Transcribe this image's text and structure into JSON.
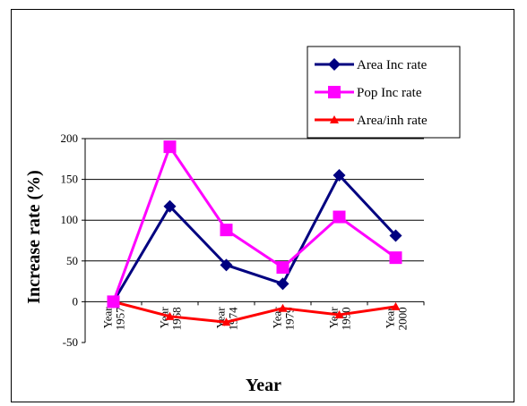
{
  "chart_data": {
    "type": "line",
    "title": "",
    "xlabel": "Year",
    "ylabel": "Increase rate (%)",
    "categories": [
      "Year 1957",
      "Year 1968",
      "Year 1974",
      "Year 1979",
      "Year 1990",
      "Year 2000"
    ],
    "ylim": [
      -50,
      200
    ],
    "yticks": [
      -50,
      0,
      50,
      100,
      150,
      200
    ],
    "grid": true,
    "legend_position": "top-right",
    "series": [
      {
        "name": "Area Inc rate",
        "color": "#000080",
        "marker": "diamond",
        "values": [
          0,
          117,
          45,
          22,
          155,
          81
        ]
      },
      {
        "name": "Pop Inc rate",
        "color": "#FF00FF",
        "marker": "square",
        "values": [
          0,
          190,
          88,
          42,
          104,
          54
        ]
      },
      {
        "name": "Area/inh rate",
        "color": "#FF0000",
        "marker": "triangle",
        "values": [
          0,
          -18,
          -25,
          -8,
          -16,
          -6
        ]
      }
    ]
  }
}
